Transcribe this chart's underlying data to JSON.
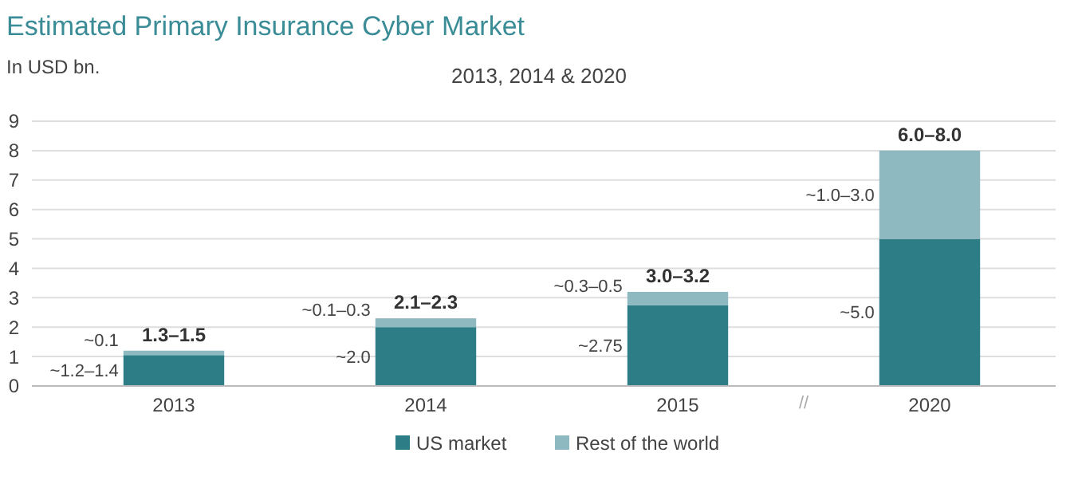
{
  "chart_data": {
    "type": "bar",
    "title": "Estimated Primary Insurance Cyber Market",
    "subtitle": "2013, 2014 & 2020",
    "ylabel": "In USD bn.",
    "categories": [
      "2013",
      "2014",
      "2015",
      "2020"
    ],
    "stacked": true,
    "series": [
      {
        "name": "US market",
        "color": "#2d7d87",
        "values": [
          1.05,
          2.0,
          2.75,
          5.0
        ]
      },
      {
        "name": "Rest of the world",
        "color": "#8fb9c1",
        "values": [
          0.15,
          0.3,
          0.45,
          3.0
        ]
      }
    ],
    "totals": [
      "1.3–1.5",
      "2.1–2.3",
      "3.0–3.2",
      "6.0–8.0"
    ],
    "annotations": [
      "~1.2–1.4",
      "~0.1",
      "~2.0",
      "~0.1–0.3",
      "~2.75",
      "~0.3–0.5",
      "~5.0",
      "~1.0–3.0",
      "//"
    ],
    "ylim": [
      0,
      9
    ],
    "yticks": [
      0,
      1,
      2,
      3,
      4,
      5,
      6,
      7,
      8,
      9
    ],
    "grid": "y",
    "legend": "bottom"
  }
}
